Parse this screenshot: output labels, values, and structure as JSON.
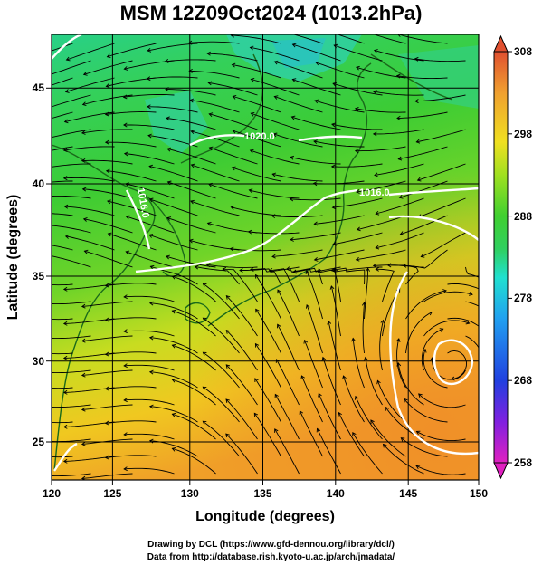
{
  "title": "MSM 12Z09Oct2024 (1013.2hPa)",
  "x_axis": {
    "label": "Longitude (degrees)",
    "ticks": [
      "120",
      "125",
      "130",
      "135",
      "140",
      "145",
      "150"
    ],
    "range": [
      120,
      150
    ]
  },
  "y_axis": {
    "label": "Latitude  (degrees)",
    "ticks": [
      "25",
      "30",
      "35",
      "40",
      "45"
    ],
    "range": [
      22.4,
      47.6
    ]
  },
  "colorbar": {
    "ticks": [
      "258",
      "268",
      "278",
      "288",
      "298",
      "308"
    ],
    "range": [
      258,
      308
    ],
    "colors": [
      "#e020c0",
      "#8020e0",
      "#2040e0",
      "#20a0f0",
      "#20e0d0",
      "#30d060",
      "#40d030",
      "#a0e020",
      "#f0e020",
      "#f0a030",
      "#e05030"
    ]
  },
  "isobars": [
    {
      "label": "1020.0"
    },
    {
      "label": "1016.0"
    },
    {
      "label": "1016.0"
    }
  ],
  "credits": {
    "line1": "Drawing by DCL (https://www.gfd-dennou.org/library/dcl/)",
    "line2": "Data from http://database.rish.kyoto-u.ac.jp/arch/jmadata/"
  }
}
